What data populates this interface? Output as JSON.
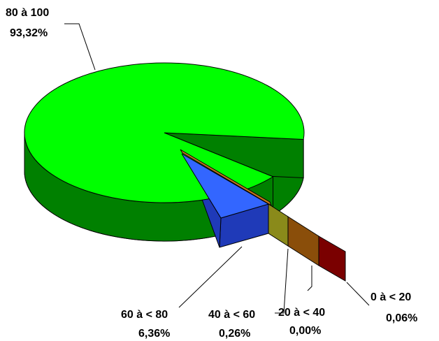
{
  "chart_data": {
    "type": "pie",
    "style": "3d-exploded",
    "title": "",
    "slices": [
      {
        "category": "80 à 100",
        "percent_label": "93,32%",
        "value": 93.32,
        "top_color": "#00ff00",
        "side_color": "#008000"
      },
      {
        "category": "60 à < 80",
        "percent_label": "6,36%",
        "value": 6.36,
        "top_color": "#3366ff",
        "side_color": "#1f3ab8"
      },
      {
        "category": "40 à < 60",
        "percent_label": "0,26%",
        "value": 0.26,
        "top_color": "#c8c83a",
        "side_color": "#8a8a1a"
      },
      {
        "category": "20 à < 40",
        "percent_label": "0,00%",
        "value": 0.0,
        "top_color": "#c0781a",
        "side_color": "#8a4e0a"
      },
      {
        "category": "0 à < 20",
        "percent_label": "0,06%",
        "value": 0.06,
        "top_color": "#b02020",
        "side_color": "#7a0000"
      }
    ]
  }
}
